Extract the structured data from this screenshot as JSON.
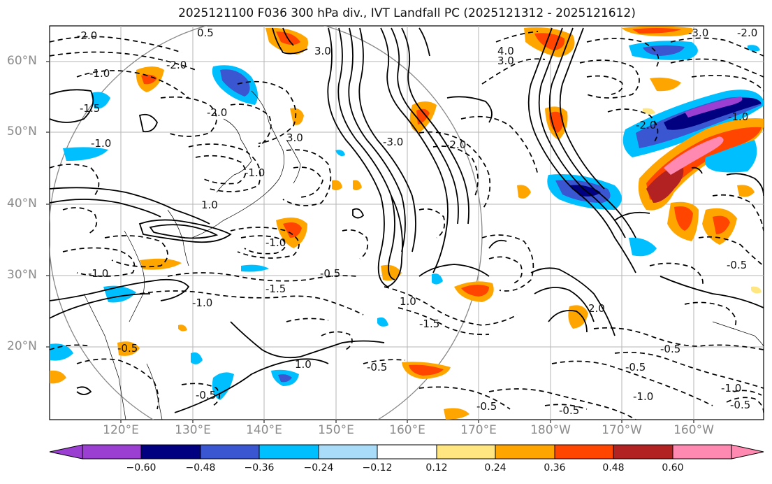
{
  "title": "2025121100 F036 300 hPa div., IVT Landfall PC (2025121312 - 2025121612)",
  "lat_labels": [
    "60°N",
    "50°N",
    "40°N",
    "30°N",
    "20°N"
  ],
  "lon_labels": [
    "120°E",
    "130°E",
    "140°E",
    "150°E",
    "160°E",
    "170°E",
    "180°W",
    "170°W",
    "160°W"
  ],
  "colorbar": {
    "ticks": [
      "−0.60",
      "−0.48",
      "−0.36",
      "−0.24",
      "−0.12",
      "0.12",
      "0.24",
      "0.36",
      "0.48",
      "0.60"
    ],
    "colors": [
      "#9b3fd3",
      "#000080",
      "#3a56d0",
      "#00bfff",
      "#a8dcf8",
      "#ffffff",
      "#ffe680",
      "#ffa500",
      "#ff4500",
      "#b22222",
      "#ff89b0"
    ]
  },
  "contour_labels": [
    "-2.0",
    "0.5",
    "3.0",
    "-1.0",
    "-2.0",
    "-1.5",
    "-1.0",
    "-2.0",
    "3.0",
    "4.0",
    "3.0",
    "-2.0",
    "-3.0",
    "-2.0",
    "-1.0",
    "-3.0",
    "-2.0",
    "-1.0",
    "-1.0",
    "-0.5",
    "-1.5",
    "-1.0",
    "1.0",
    "-1.5",
    "2.0",
    "-1.0",
    "1.0",
    "-0.5",
    "-0.5",
    "-0.5",
    "-0.5",
    "-0.5",
    "-1.0",
    "-0.5",
    "-0.5",
    "-0.5",
    "-1.0",
    "1.0",
    "-0.5"
  ]
}
